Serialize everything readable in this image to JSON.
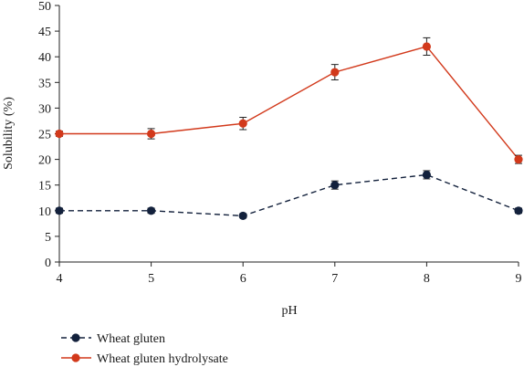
{
  "chart_data": {
    "type": "line",
    "xlabel": "pH",
    "ylabel": "Solubility (%)",
    "x": [
      4,
      5,
      6,
      7,
      8,
      9
    ],
    "xlim": [
      4,
      9
    ],
    "ylim": [
      0,
      50
    ],
    "xticks": [
      "4",
      "5",
      "6",
      "7",
      "8",
      "9"
    ],
    "yticks": [
      "0",
      "5",
      "10",
      "15",
      "20",
      "25",
      "30",
      "35",
      "40",
      "45",
      "50"
    ],
    "grid": false,
    "legend_position": "bottom-left",
    "series": [
      {
        "name": "Wheat gluten",
        "values": [
          10,
          10,
          9,
          15,
          17,
          10
        ],
        "errors": [
          0.5,
          0.5,
          0.4,
          0.8,
          0.8,
          0.5
        ],
        "color": "#13213c",
        "line_style": "dashed",
        "marker": "circle"
      },
      {
        "name": "Wheat gluten hydrolysate",
        "values": [
          25,
          25,
          27,
          37,
          42,
          20
        ],
        "errors": [
          0.5,
          1.0,
          1.2,
          1.5,
          1.7,
          0.8
        ],
        "color": "#d2391b",
        "line_style": "solid",
        "marker": "circle"
      }
    ]
  }
}
